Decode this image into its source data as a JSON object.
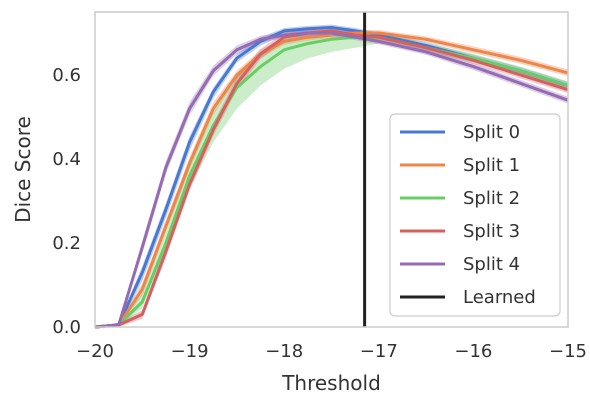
{
  "chart_data": {
    "type": "line",
    "xlabel": "Threshold",
    "ylabel": "Dice Score",
    "xlim": [
      -20,
      -15
    ],
    "ylim": [
      0,
      0.75
    ],
    "xticks": [
      -20,
      -19,
      -18,
      -17,
      -16,
      -15
    ],
    "xtick_labels": [
      "−20",
      "−19",
      "−18",
      "−17",
      "−16",
      "−15"
    ],
    "yticks": [
      0.0,
      0.2,
      0.4,
      0.6
    ],
    "ytick_labels": [
      "0.0",
      "0.2",
      "0.4",
      "0.6"
    ],
    "grid": false,
    "legend_position": "bottom-right",
    "series": [
      {
        "name": "Split 0",
        "color": "#4878d0",
        "x": [
          -20,
          -19.75,
          -19.5,
          -19.25,
          -19,
          -18.75,
          -18.5,
          -18.25,
          -18,
          -17.75,
          -17.5,
          -17.25,
          -17,
          -16.5,
          -16,
          -15.5,
          -15
        ],
        "y": [
          0.0,
          0.005,
          0.13,
          0.28,
          0.44,
          0.56,
          0.64,
          0.68,
          0.705,
          0.71,
          0.713,
          0.705,
          0.695,
          0.67,
          0.64,
          0.61,
          0.575
        ],
        "band_low": [
          0.0,
          0.0,
          0.11,
          0.26,
          0.42,
          0.545,
          0.63,
          0.67,
          0.695,
          0.702,
          0.706,
          0.698,
          0.688,
          0.662,
          0.632,
          0.602,
          0.567
        ],
        "band_high": [
          0.0,
          0.01,
          0.145,
          0.295,
          0.455,
          0.57,
          0.65,
          0.69,
          0.712,
          0.717,
          0.72,
          0.712,
          0.702,
          0.678,
          0.648,
          0.618,
          0.583
        ]
      },
      {
        "name": "Split 1",
        "color": "#ee854a",
        "x": [
          -20,
          -19.75,
          -19.5,
          -19.25,
          -19,
          -18.75,
          -18.5,
          -18.25,
          -18,
          -17.75,
          -17.5,
          -17.25,
          -17,
          -16.5,
          -16,
          -15.5,
          -15
        ],
        "y": [
          0.0,
          0.005,
          0.09,
          0.24,
          0.39,
          0.52,
          0.6,
          0.65,
          0.68,
          0.69,
          0.695,
          0.7,
          0.7,
          0.685,
          0.66,
          0.635,
          0.605
        ],
        "band_low": [
          0.0,
          0.0,
          0.075,
          0.225,
          0.375,
          0.505,
          0.59,
          0.64,
          0.672,
          0.682,
          0.688,
          0.693,
          0.693,
          0.678,
          0.652,
          0.627,
          0.597
        ],
        "band_high": [
          0.0,
          0.01,
          0.105,
          0.255,
          0.405,
          0.535,
          0.61,
          0.66,
          0.688,
          0.698,
          0.702,
          0.707,
          0.707,
          0.692,
          0.668,
          0.643,
          0.613
        ]
      },
      {
        "name": "Split 2",
        "color": "#6acc64",
        "x": [
          -20,
          -19.75,
          -19.5,
          -19.25,
          -19,
          -18.75,
          -18.5,
          -18.25,
          -18,
          -17.75,
          -17.5,
          -17.25,
          -17,
          -16.5,
          -16,
          -15.5,
          -15
        ],
        "y": [
          0.0,
          0.005,
          0.06,
          0.2,
          0.36,
          0.48,
          0.57,
          0.62,
          0.66,
          0.675,
          0.685,
          0.69,
          0.69,
          0.665,
          0.64,
          0.61,
          0.575
        ],
        "band_low": [
          0.0,
          0.0,
          0.045,
          0.18,
          0.33,
          0.44,
          0.52,
          0.575,
          0.615,
          0.64,
          0.655,
          0.665,
          0.675,
          0.655,
          0.63,
          0.6,
          0.565
        ],
        "band_high": [
          0.0,
          0.01,
          0.08,
          0.225,
          0.385,
          0.51,
          0.6,
          0.65,
          0.685,
          0.698,
          0.705,
          0.705,
          0.702,
          0.675,
          0.65,
          0.62,
          0.585
        ]
      },
      {
        "name": "Split 3",
        "color": "#d65f5f",
        "x": [
          -20,
          -19.75,
          -19.5,
          -19.25,
          -19,
          -18.75,
          -18.5,
          -18.25,
          -18,
          -17.75,
          -17.5,
          -17.25,
          -17,
          -16.5,
          -16,
          -15.5,
          -15
        ],
        "y": [
          0.0,
          0.005,
          0.03,
          0.18,
          0.34,
          0.47,
          0.58,
          0.65,
          0.69,
          0.7,
          0.705,
          0.695,
          0.69,
          0.665,
          0.635,
          0.6,
          0.565
        ],
        "band_low": [
          0.0,
          0.0,
          0.02,
          0.165,
          0.325,
          0.455,
          0.565,
          0.638,
          0.68,
          0.692,
          0.698,
          0.688,
          0.683,
          0.658,
          0.627,
          0.592,
          0.557
        ],
        "band_high": [
          0.0,
          0.01,
          0.04,
          0.195,
          0.355,
          0.485,
          0.595,
          0.662,
          0.7,
          0.708,
          0.712,
          0.702,
          0.697,
          0.672,
          0.643,
          0.608,
          0.573
        ]
      },
      {
        "name": "Split 4",
        "color": "#956cb4",
        "x": [
          -20,
          -19.75,
          -19.5,
          -19.25,
          -19,
          -18.75,
          -18.5,
          -18.25,
          -18,
          -17.75,
          -17.5,
          -17.25,
          -17,
          -16.5,
          -16,
          -15.5,
          -15
        ],
        "y": [
          0.0,
          0.005,
          0.19,
          0.38,
          0.52,
          0.61,
          0.66,
          0.685,
          0.695,
          0.7,
          0.7,
          0.69,
          0.68,
          0.655,
          0.62,
          0.58,
          0.54
        ],
        "band_low": [
          0.0,
          0.0,
          0.175,
          0.365,
          0.505,
          0.598,
          0.65,
          0.677,
          0.688,
          0.693,
          0.693,
          0.683,
          0.673,
          0.648,
          0.612,
          0.572,
          0.532
        ],
        "band_high": [
          0.0,
          0.01,
          0.205,
          0.395,
          0.535,
          0.622,
          0.67,
          0.693,
          0.702,
          0.707,
          0.707,
          0.697,
          0.687,
          0.662,
          0.628,
          0.588,
          0.548
        ]
      }
    ],
    "reference_lines": [
      {
        "name": "Learned",
        "orientation": "vertical",
        "x": -17.15,
        "color": "#222222"
      }
    ]
  }
}
